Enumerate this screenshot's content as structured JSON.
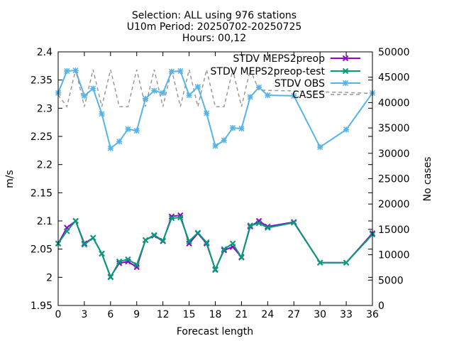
{
  "chart_data": {
    "type": "line",
    "title_lines": [
      "Selection: ALL using   976 stations",
      "U10m   Period: 20250702-20250725",
      "Hours: 00,12"
    ],
    "xlabel": "Forecast length",
    "ylabel": "m/s",
    "y2label": "No cases",
    "xlim": [
      0,
      36
    ],
    "ylim": [
      1.95,
      2.4
    ],
    "y2lim": [
      0,
      50000
    ],
    "xticks": [
      0,
      3,
      6,
      9,
      12,
      15,
      18,
      21,
      24,
      27,
      30,
      33,
      36
    ],
    "yticks": [
      "1.95",
      "2",
      "2.05",
      "2.1",
      "2.15",
      "2.2",
      "2.25",
      "2.3",
      "2.35",
      "2.4"
    ],
    "y2ticks": [
      "0",
      "5000",
      "10000",
      "15000",
      "20000",
      "25000",
      "30000",
      "35000",
      "40000",
      "45000",
      "50000"
    ],
    "legend_position": "top-right",
    "grid": false,
    "series": [
      {
        "name": "STDV MEPS2preop",
        "color": "#9400d3",
        "marker": "x",
        "axis": "y",
        "x": [
          0,
          1,
          2,
          3,
          4,
          5,
          6,
          7,
          8,
          9,
          10,
          11,
          12,
          13,
          14,
          15,
          16,
          17,
          18,
          19,
          20,
          21,
          22,
          23,
          24,
          27,
          30,
          33,
          36
        ],
        "y": [
          2.06,
          2.088,
          2.1,
          2.06,
          2.07,
          2.042,
          2.001,
          2.025,
          2.028,
          2.018,
          2.066,
          2.074,
          2.064,
          2.108,
          2.11,
          2.06,
          2.078,
          2.06,
          2.014,
          2.048,
          2.054,
          2.036,
          2.09,
          2.1,
          2.09,
          2.098,
          2.026,
          2.026,
          2.078
        ]
      },
      {
        "name": "STDV MEPS2preop-test",
        "color": "#009e73",
        "marker": "x",
        "axis": "y",
        "x": [
          0,
          1,
          2,
          3,
          4,
          5,
          6,
          7,
          8,
          9,
          10,
          11,
          12,
          13,
          14,
          15,
          16,
          17,
          18,
          19,
          20,
          21,
          22,
          23,
          24,
          27,
          30,
          33,
          36
        ],
        "y": [
          2.06,
          2.082,
          2.1,
          2.058,
          2.07,
          2.042,
          2.0,
          2.028,
          2.032,
          2.022,
          2.066,
          2.075,
          2.065,
          2.105,
          2.106,
          2.064,
          2.079,
          2.062,
          2.013,
          2.05,
          2.06,
          2.035,
          2.092,
          2.096,
          2.088,
          2.097,
          2.026,
          2.026,
          2.076
        ]
      },
      {
        "name": "STDV OBS",
        "color": "#56b4e9",
        "marker": "star",
        "axis": "y",
        "x": [
          0,
          1,
          2,
          3,
          4,
          5,
          6,
          7,
          8,
          9,
          10,
          11,
          12,
          13,
          14,
          15,
          16,
          17,
          18,
          19,
          20,
          21,
          22,
          23,
          24,
          27,
          30,
          33,
          36
        ],
        "y": [
          2.327,
          2.366,
          2.367,
          2.322,
          2.335,
          2.29,
          2.229,
          2.241,
          2.263,
          2.26,
          2.317,
          2.331,
          2.327,
          2.365,
          2.366,
          2.323,
          2.338,
          2.291,
          2.233,
          2.243,
          2.265,
          2.264,
          2.32,
          2.337,
          2.323,
          2.322,
          2.231,
          2.262,
          2.327
        ]
      },
      {
        "name": "CASES",
        "color": "#999999",
        "marker": "none",
        "dashed": true,
        "axis": "y2",
        "x": [
          0,
          1,
          2,
          3,
          4,
          5,
          6,
          7,
          8,
          9,
          10,
          11,
          12,
          13,
          14,
          15,
          16,
          17,
          18,
          19,
          20,
          21,
          22,
          23,
          24,
          27,
          30,
          33,
          36
        ],
        "y": [
          41500,
          39200,
          46500,
          39200,
          46500,
          39200,
          46500,
          39200,
          39200,
          46500,
          39200,
          46500,
          39200,
          46500,
          39200,
          46500,
          39200,
          46500,
          39200,
          39200,
          46500,
          39200,
          46500,
          42500,
          42400,
          42300,
          42100,
          42000,
          41800
        ]
      }
    ]
  }
}
